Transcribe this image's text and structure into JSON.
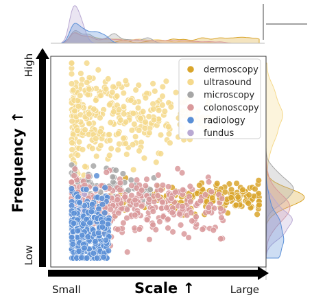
{
  "chart_data": {
    "type": "scatter",
    "title": "",
    "xlabel": "Scale ↑",
    "ylabel": "Frequency ↑",
    "x_tick_labels": [
      "Small",
      "Large"
    ],
    "y_tick_labels": [
      "Low",
      "High"
    ],
    "xlim": [
      0,
      1
    ],
    "ylim": [
      0,
      1
    ],
    "grid": false,
    "legend_position": "top-right",
    "marginals": {
      "top": "kde",
      "right": "kde"
    },
    "series": [
      {
        "name": "dermoscopy",
        "color": "#d9a52b",
        "cluster": {
          "x_range": [
            0.18,
            1.0
          ],
          "y_center": 0.31,
          "y_spread": 0.04,
          "count": 180
        }
      },
      {
        "name": "ultrasound",
        "color": "#f5d98c",
        "cluster": {
          "x_range": [
            0.05,
            0.75
          ],
          "y_center": 0.72,
          "y_spread": 0.14,
          "count": 330
        }
      },
      {
        "name": "microscopy",
        "color": "#a6a6a6",
        "cluster": {
          "x_range": [
            0.05,
            0.48
          ],
          "y_center": 0.35,
          "y_spread": 0.06,
          "count": 90
        }
      },
      {
        "name": "colonoscopy",
        "color": "#d9999b",
        "cluster": {
          "x_range": [
            0.05,
            0.82
          ],
          "y_center": 0.26,
          "y_spread": 0.07,
          "count": 420
        }
      },
      {
        "name": "radiology",
        "color": "#5a8fd6",
        "cluster": {
          "x_range": [
            0.05,
            0.24
          ],
          "y_center": 0.13,
          "y_spread": 0.1,
          "count": 380
        }
      },
      {
        "name": "fundus",
        "color": "#b9a9d3",
        "cluster": {
          "x_range": [
            0.05,
            0.12
          ],
          "y_center": 0.18,
          "y_spread": 0.07,
          "count": 40
        }
      }
    ]
  }
}
